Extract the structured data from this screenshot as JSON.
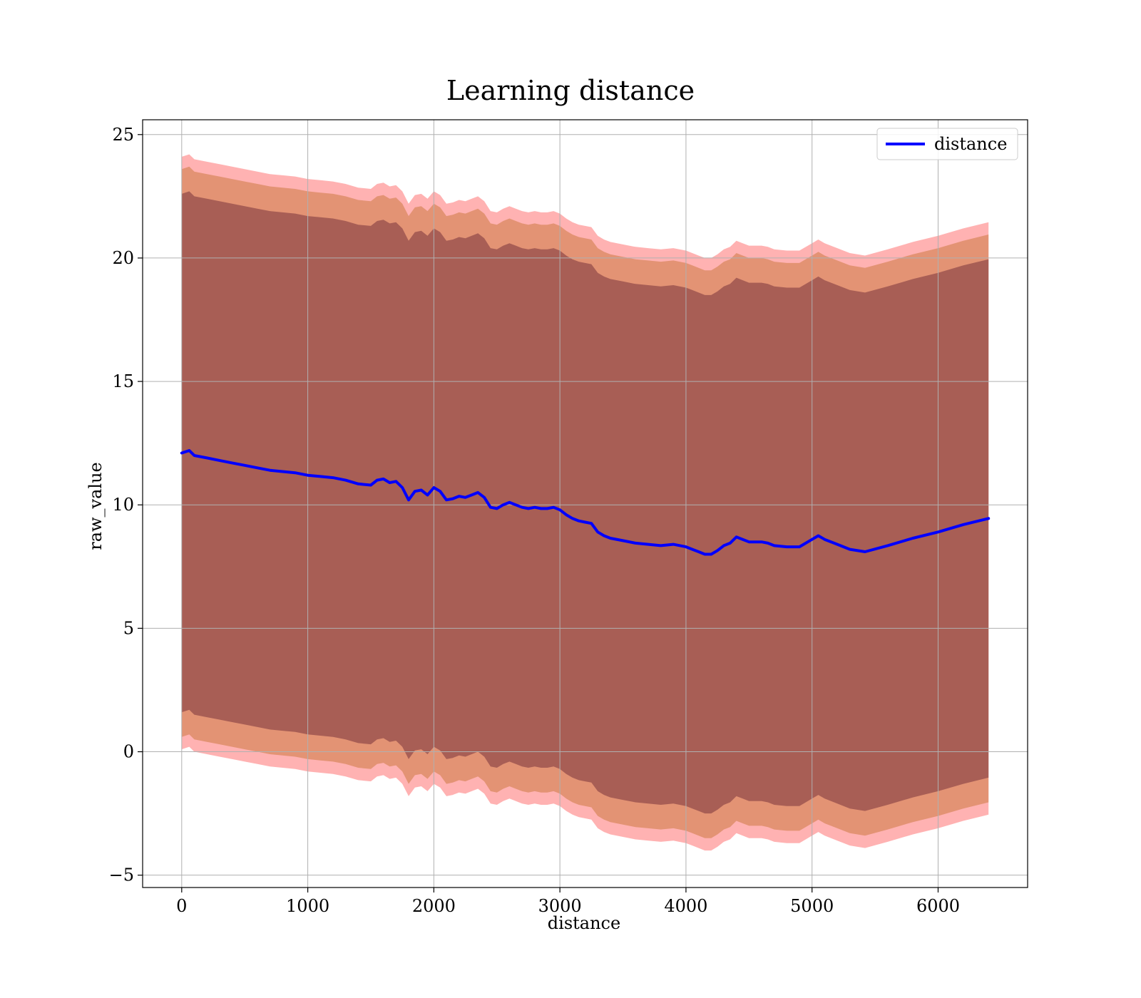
{
  "chart_data": {
    "type": "line",
    "title": "Learning distance",
    "xlabel": "distance",
    "ylabel": "raw_value",
    "xlim": [
      -310,
      6710
    ],
    "ylim": [
      -5.5,
      25.6
    ],
    "xticks": [
      0,
      1000,
      2000,
      3000,
      4000,
      5000,
      6000
    ],
    "yticks": [
      -5,
      0,
      5,
      10,
      15,
      20,
      25
    ],
    "xtick_labels": [
      "0",
      "1000",
      "2000",
      "3000",
      "4000",
      "5000",
      "6000"
    ],
    "ytick_labels": [
      "−5",
      "0",
      "5",
      "10",
      "15",
      "20",
      "25"
    ],
    "grid": true,
    "legend": {
      "position": "top-right",
      "entries": [
        "distance"
      ]
    },
    "colors": {
      "line": "#0000ff",
      "band_outer": "#ff0000",
      "band_middle": "#b05a00",
      "band_inner": "#602030",
      "grid": "#b0b0b0",
      "axes": "#000000"
    },
    "series": [
      {
        "name": "distance",
        "x": [
          0,
          60,
          100,
          200,
          300,
          400,
          500,
          600,
          700,
          800,
          900,
          1000,
          1100,
          1200,
          1300,
          1400,
          1500,
          1550,
          1600,
          1650,
          1700,
          1750,
          1800,
          1850,
          1900,
          1950,
          2000,
          2050,
          2100,
          2150,
          2200,
          2250,
          2300,
          2350,
          2400,
          2450,
          2500,
          2550,
          2600,
          2650,
          2700,
          2750,
          2800,
          2850,
          2900,
          2950,
          3000,
          3050,
          3100,
          3150,
          3200,
          3250,
          3300,
          3350,
          3400,
          3500,
          3600,
          3700,
          3800,
          3900,
          4000,
          4050,
          4100,
          4150,
          4200,
          4250,
          4300,
          4350,
          4400,
          4450,
          4500,
          4600,
          4650,
          4700,
          4800,
          4900,
          5000,
          5050,
          5100,
          5200,
          5300,
          5420,
          5600,
          5800,
          6000,
          6200,
          6400
        ],
        "y": [
          12.1,
          12.2,
          12.0,
          11.9,
          11.8,
          11.7,
          11.6,
          11.5,
          11.4,
          11.35,
          11.3,
          11.2,
          11.15,
          11.1,
          11.0,
          10.85,
          10.8,
          11.0,
          11.05,
          10.9,
          10.95,
          10.7,
          10.2,
          10.55,
          10.6,
          10.4,
          10.7,
          10.55,
          10.2,
          10.25,
          10.35,
          10.3,
          10.4,
          10.5,
          10.3,
          9.9,
          9.85,
          10.0,
          10.1,
          10.0,
          9.9,
          9.85,
          9.9,
          9.85,
          9.85,
          9.9,
          9.8,
          9.6,
          9.45,
          9.35,
          9.3,
          9.25,
          8.9,
          8.75,
          8.65,
          8.55,
          8.45,
          8.4,
          8.35,
          8.4,
          8.3,
          8.2,
          8.1,
          8.0,
          8.0,
          8.15,
          8.35,
          8.45,
          8.7,
          8.6,
          8.5,
          8.5,
          8.45,
          8.35,
          8.3,
          8.3,
          8.6,
          8.75,
          8.6,
          8.4,
          8.2,
          8.1,
          8.35,
          8.65,
          8.9,
          9.2,
          9.45
        ]
      }
    ],
    "bands": [
      {
        "level": "outer",
        "upper_offset": 12.0,
        "lower_offset": 12.0
      },
      {
        "level": "middle",
        "upper_offset": 11.5,
        "lower_offset": 11.5
      },
      {
        "level": "inner",
        "upper_offset": 10.5,
        "lower_offset": 10.5
      }
    ]
  }
}
